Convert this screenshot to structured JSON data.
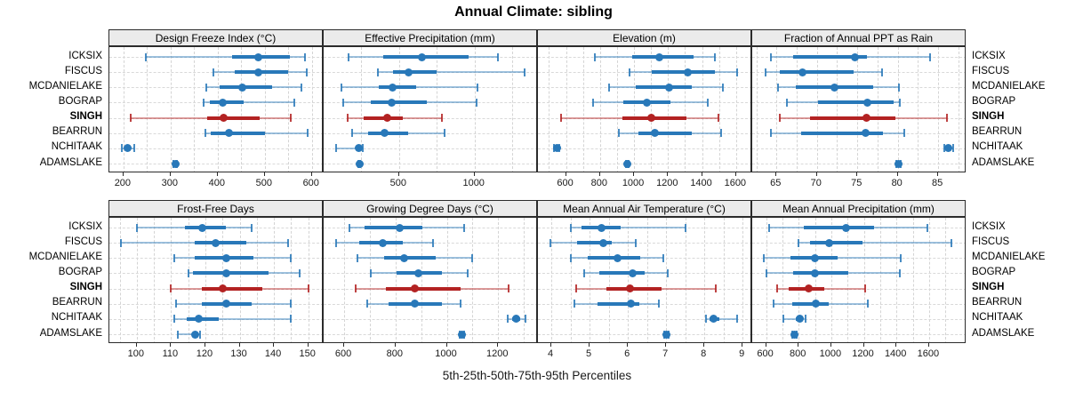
{
  "title": "Annual Climate: sibling",
  "footer": "5th-25th-50th-75th-95th Percentiles",
  "sites": [
    "ICKSIX",
    "FISCUS",
    "MCDANIELAKE",
    "BOGRAP",
    "SINGH",
    "BEARRUN",
    "NCHITAAK",
    "ADAMSLAKE"
  ],
  "highlighted_site": "SINGH",
  "colors": {
    "default_series": "#2878b9",
    "highlight_series": "#b32222",
    "strip_bg": "#ebebeb",
    "panel_border": "#2b2b2b",
    "gridline": "#d4d4d4"
  },
  "chart_data": {
    "type": "percentile-dotplot",
    "orientation": "horizontal",
    "percentile_labels": [
      "5th",
      "25th",
      "50th",
      "75th",
      "95th"
    ],
    "grid": "dashed",
    "layout": {
      "rows": 2,
      "cols": 4
    },
    "sites": [
      "ICKSIX",
      "FISCUS",
      "MCDANIELAKE",
      "BOGRAP",
      "SINGH",
      "BEARRUN",
      "NCHITAAK",
      "ADAMSLAKE"
    ],
    "panels": [
      {
        "title": "Design Freeze Index (°C)",
        "xlim": [
          170,
          625
        ],
        "ticks": [
          200,
          300,
          400,
          500,
          600
        ],
        "percentiles": [
          [
            247,
            430,
            487,
            553,
            585
          ],
          [
            390,
            437,
            487,
            550,
            590
          ],
          [
            375,
            404,
            453,
            516,
            578
          ],
          [
            370,
            384,
            410,
            455,
            562
          ],
          [
            216,
            378,
            413,
            489,
            556
          ],
          [
            373,
            385,
            423,
            500,
            591
          ],
          [
            196,
            204,
            209,
            215,
            222
          ],
          [
            305,
            308,
            310,
            312,
            314
          ]
        ]
      },
      {
        "title": "Effective Precipitation (mm)",
        "xlim": [
          0,
          1420
        ],
        "ticks": [
          500,
          1000
        ],
        "percentiles": [
          [
            167,
            392,
            653,
            960,
            1153
          ],
          [
            362,
            460,
            563,
            751,
            1333
          ],
          [
            118,
            363,
            457,
            614,
            1020
          ],
          [
            127,
            314,
            451,
            686,
            1016
          ],
          [
            157,
            265,
            422,
            525,
            784
          ],
          [
            190,
            294,
            406,
            559,
            800
          ],
          [
            82,
            215,
            235,
            247,
            258
          ],
          [
            228,
            232,
            236,
            240,
            244
          ]
        ]
      },
      {
        "title": "Elevation (m)",
        "xlim": [
          435,
          1695
        ],
        "ticks": [
          600,
          800,
          1000,
          1200,
          1400,
          1600
        ],
        "percentiles": [
          [
            770,
            988,
            1148,
            1348,
            1473
          ],
          [
            974,
            1104,
            1318,
            1478,
            1605
          ],
          [
            852,
            1009,
            1205,
            1339,
            1522
          ],
          [
            757,
            939,
            1078,
            1214,
            1431
          ],
          [
            570,
            934,
            1101,
            1310,
            1496
          ],
          [
            913,
            1026,
            1122,
            1339,
            1510
          ],
          [
            528,
            538,
            545,
            552,
            562
          ],
          [
            950,
            955,
            958,
            962,
            966
          ]
        ]
      },
      {
        "title": "Fraction of Annual PPT as Rain",
        "xlim": [
          62,
          88.5
        ],
        "ticks": [
          65,
          70,
          75,
          80,
          85
        ],
        "percentiles": [
          [
            64.3,
            67.1,
            74.7,
            76.2,
            84.0
          ],
          [
            63.7,
            65.4,
            68.2,
            74.5,
            78.1
          ],
          [
            65.2,
            67.4,
            72.2,
            77.0,
            80.1
          ],
          [
            66.3,
            70.1,
            76.2,
            79.5,
            80.2
          ],
          [
            65.4,
            69.1,
            76.1,
            79.7,
            86.1
          ],
          [
            64.3,
            68.0,
            76.0,
            78.2,
            80.8
          ],
          [
            85.7,
            86.0,
            86.2,
            86.5,
            86.9
          ],
          [
            79.8,
            80.0,
            80.1,
            80.2,
            80.4
          ]
        ]
      },
      {
        "title": "Frost-Free Days",
        "xlim": [
          92,
          154.5
        ],
        "ticks": [
          100,
          110,
          120,
          130,
          140,
          150
        ],
        "percentiles": [
          [
            100,
            114,
            119,
            126,
            133.5
          ],
          [
            95.5,
            117,
            123,
            132,
            144
          ],
          [
            111,
            117,
            126,
            134,
            145
          ],
          [
            115,
            116.5,
            126,
            138.5,
            147.5
          ],
          [
            110,
            119,
            125,
            136.5,
            150
          ],
          [
            111.5,
            119,
            126,
            133.5,
            145
          ],
          [
            111,
            114.5,
            118,
            124,
            145
          ],
          [
            112,
            116,
            117,
            118,
            118.5
          ]
        ]
      },
      {
        "title": "Growing Degree Days (°C)",
        "xlim": [
          520,
          1355
        ],
        "ticks": [
          600,
          800,
          1000,
          1200
        ],
        "percentiles": [
          [
            622,
            678,
            817,
            903,
            1066
          ],
          [
            568,
            660,
            752,
            830,
            945
          ],
          [
            651,
            756,
            834,
            956,
            1097
          ],
          [
            704,
            803,
            889,
            980,
            1081
          ],
          [
            646,
            762,
            876,
            1055,
            1240
          ],
          [
            691,
            774,
            875,
            980,
            1054
          ],
          [
            1237,
            1255,
            1270,
            1286,
            1305
          ],
          [
            1050,
            1054,
            1058,
            1062,
            1066
          ]
        ]
      },
      {
        "title": "Mean Annual Air Temperature (°C)",
        "xlim": [
          3.65,
          9.25
        ],
        "ticks": [
          4,
          5,
          6,
          7,
          8,
          9
        ],
        "percentiles": [
          [
            4.5,
            4.8,
            5.32,
            5.81,
            7.5
          ],
          [
            3.98,
            4.68,
            5.35,
            5.58,
            6.2
          ],
          [
            4.5,
            4.96,
            5.73,
            6.32,
            6.92
          ],
          [
            4.85,
            5.25,
            6.12,
            6.45,
            7.04
          ],
          [
            4.65,
            5.43,
            6.05,
            6.88,
            8.3
          ],
          [
            4.6,
            5.21,
            6.08,
            6.3,
            6.81
          ],
          [
            8.05,
            8.14,
            8.25,
            8.38,
            8.85
          ],
          [
            6.94,
            6.97,
            7.0,
            7.03,
            7.06
          ]
        ]
      },
      {
        "title": "Mean Annual Precipitation (mm)",
        "xlim": [
          515,
          1830
        ],
        "ticks": [
          600,
          800,
          1000,
          1200,
          1400,
          1600
        ],
        "percentiles": [
          [
            618,
            831,
            1091,
            1264,
            1591
          ],
          [
            800,
            867,
            985,
            1190,
            1735
          ],
          [
            585,
            749,
            900,
            1040,
            1427
          ],
          [
            600,
            767,
            900,
            1104,
            1422
          ],
          [
            667,
            740,
            864,
            958,
            1209
          ],
          [
            645,
            758,
            905,
            982,
            1227
          ],
          [
            704,
            780,
            805,
            822,
            840
          ],
          [
            763,
            770,
            775,
            780,
            787
          ]
        ]
      }
    ]
  }
}
